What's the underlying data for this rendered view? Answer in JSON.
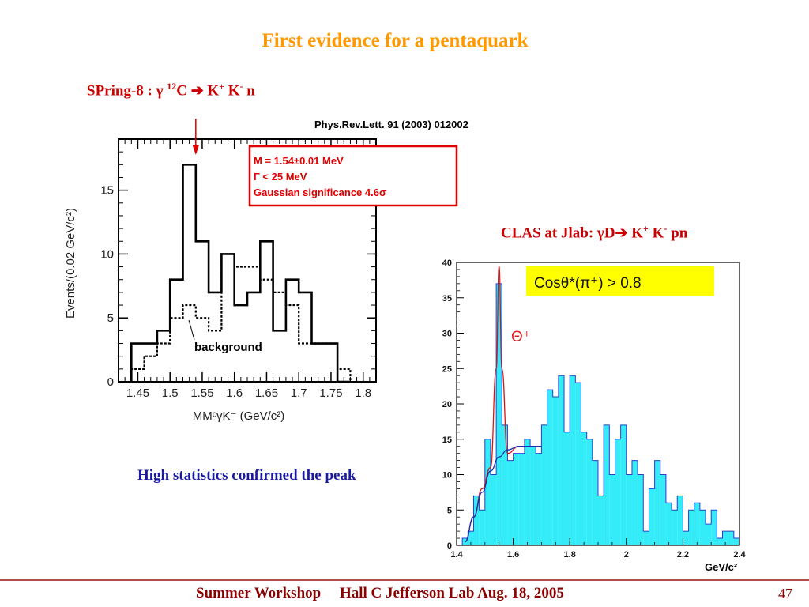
{
  "slide": {
    "title": "First evidence for a pentaquark",
    "left_heading": {
      "pre": "SPring-8 : γ ",
      "sup1": "12",
      "mid": "C ➔ K",
      "sup2": "+",
      "mid2": " K",
      "sup3": "-",
      "post": " n"
    },
    "right_heading": {
      "pre": "CLAS at Jlab: γD➔ K",
      "sup1": "+",
      "mid": " K",
      "sup2": "-",
      "post": " pn"
    },
    "caption": "High statistics confirmed the peak",
    "footer": "Summer Workshop     Hall C Jefferson Lab Aug. 18, 2005",
    "page_number": "47"
  },
  "chart_data": [
    {
      "type": "line",
      "reference": "Phys.Rev.Lett. 91 (2003) 012002",
      "xlabel": "MMᶜγK⁻ (GeV/c²)",
      "ylabel": "Events/(0.02 GeV/c²)",
      "xlim": [
        1.42,
        1.82
      ],
      "ylim": [
        0,
        19
      ],
      "x_ticks": [
        "1.45",
        "1.5",
        "1.55",
        "1.6",
        "1.65",
        "1.7",
        "1.75",
        "1.8"
      ],
      "y_ticks": [
        "0",
        "5",
        "10",
        "15"
      ],
      "info_box": [
        "M = 1.54±0.01 MeV",
        "Γ < 25 MeV",
        "Gaussian significance 4.6σ"
      ],
      "annotation": "background",
      "arrow_x": 1.54,
      "bin_edges": [
        1.44,
        1.46,
        1.48,
        1.5,
        1.52,
        1.54,
        1.56,
        1.58,
        1.6,
        1.62,
        1.64,
        1.66,
        1.68,
        1.7,
        1.72,
        1.74,
        1.76,
        1.78
      ],
      "series": [
        {
          "values": [
            3,
            3,
            4,
            8,
            17,
            11,
            7,
            10,
            6,
            7,
            11,
            4,
            8,
            7,
            3,
            3,
            0
          ]
        },
        {
          "values": [
            1,
            2,
            3,
            5,
            6,
            5,
            4,
            10,
            9,
            9,
            8,
            7,
            6,
            3,
            3,
            3,
            1
          ]
        }
      ]
    },
    {
      "type": "bar",
      "title": "Cosθ*(π⁺) > 0.8",
      "xlabel": "GeV/c²",
      "xlim": [
        1.4,
        2.4
      ],
      "ylim": [
        0,
        40
      ],
      "x_ticks": [
        "1.4",
        "1.6",
        "1.8",
        "2",
        "2.2",
        "2.4"
      ],
      "y_ticks": [
        "0",
        "5",
        "10",
        "15",
        "20",
        "25",
        "30",
        "35",
        "40"
      ],
      "annotation": "Θ⁺",
      "x": [
        1.43,
        1.45,
        1.47,
        1.49,
        1.51,
        1.53,
        1.55,
        1.57,
        1.59,
        1.61,
        1.63,
        1.65,
        1.67,
        1.69,
        1.71,
        1.73,
        1.75,
        1.77,
        1.79,
        1.81,
        1.83,
        1.85,
        1.87,
        1.89,
        1.91,
        1.93,
        1.95,
        1.97,
        1.99,
        2.01,
        2.03,
        2.05,
        2.07,
        2.09,
        2.11,
        2.13,
        2.15,
        2.17,
        2.19,
        2.21,
        2.23,
        2.25,
        2.27,
        2.29,
        2.31,
        2.33,
        2.35,
        2.37,
        2.39
      ],
      "values": [
        1,
        2,
        7,
        5,
        15,
        10,
        37,
        17,
        12,
        13,
        13,
        15,
        14,
        13,
        17,
        22,
        21,
        24,
        16,
        24,
        23,
        16,
        15,
        12,
        7,
        17,
        10,
        15,
        17,
        10,
        12,
        10,
        2,
        8,
        12,
        10,
        6,
        5,
        7,
        2,
        5,
        6,
        5,
        3,
        5,
        1,
        2,
        2,
        1
      ],
      "fit_series": [
        {
          "name": "",
          "x": [
            1.43,
            1.46,
            1.49,
            1.52,
            1.54,
            1.55,
            1.56,
            1.58,
            1.62,
            1.7
          ],
          "y": [
            0.5,
            4,
            8,
            11,
            25,
            39.5,
            25,
            13,
            14,
            14
          ]
        },
        {
          "name": "",
          "x": [
            1.43,
            1.46,
            1.49,
            1.52,
            1.55,
            1.58,
            1.62,
            1.7
          ],
          "y": [
            0.5,
            4,
            7.5,
            10.5,
            12.5,
            13.5,
            14,
            14
          ]
        }
      ]
    }
  ]
}
